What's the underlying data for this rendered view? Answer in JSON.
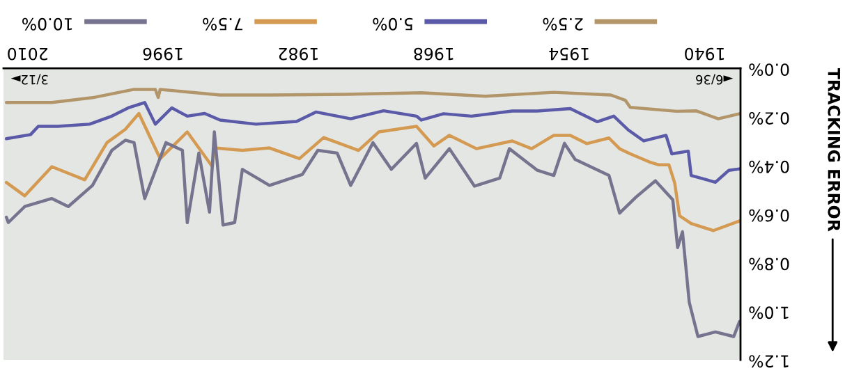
{
  "chart_data": {
    "type": "line",
    "ylabel": "TRACKING ERROR",
    "xlim": [
      2012.5,
      1936.3
    ],
    "xticks": [
      1940,
      1954,
      1968,
      1982,
      1996,
      2010
    ],
    "ylim": [
      1.2,
      0
    ],
    "yticks": [
      {
        "value": 0,
        "label": "0.0%"
      },
      {
        "value": 0.2,
        "label": "0.2%"
      },
      {
        "value": 0.4,
        "label": "0.4%"
      },
      {
        "value": 0.6,
        "label": "0.6%"
      },
      {
        "value": 0.8,
        "label": "0.8%"
      },
      {
        "value": 1.0,
        "label": "1.0%"
      },
      {
        "value": 1.2,
        "label": "1.2%"
      }
    ],
    "grid": false,
    "legend": "top",
    "marker": "none",
    "line_style": "solid",
    "annotations": [
      "◄6/36",
      "3/12►"
    ],
    "series": [
      {
        "name": "2.5%",
        "color": "#b3956a",
        "x": [
          1936.4,
          1938.6,
          1940.9,
          1942.9,
          1947.7,
          1948.2,
          1949.7,
          1955.6,
          1962.7,
          1969.3,
          1977.0,
          1985.0,
          1990.1,
          1996.3,
          1996.5,
          1996.8,
          1999.0,
          2003.3,
          2007.5,
          2012.2
        ],
        "values": [
          0.187,
          0.208,
          0.175,
          0.177,
          0.161,
          0.132,
          0.11,
          0.099,
          0.115,
          0.101,
          0.107,
          0.11,
          0.11,
          0.087,
          0.12,
          0.087,
          0.087,
          0.121,
          0.141,
          0.141
        ]
      },
      {
        "name": "5.0%",
        "color": "#5a5aa8",
        "x": [
          1936.4,
          1937.5,
          1938.9,
          1941.4,
          1941.7,
          1943.4,
          1944.0,
          1946.3,
          1947.9,
          1949.4,
          1951.1,
          1953.9,
          1957.3,
          1959.9,
          1964.1,
          1967.0,
          1969.3,
          1969.8,
          1973.2,
          1976.6,
          1980.2,
          1982.2,
          1986.4,
          1990.1,
          1991.7,
          1993.5,
          1995.1,
          1996.8,
          1997.9,
          1999.6,
          2001.3,
          2003.6,
          2006.9,
          2008.9,
          2009.7,
          2012.2
        ],
        "values": [
          0.414,
          0.42,
          0.469,
          0.441,
          0.341,
          0.352,
          0.276,
          0.299,
          0.254,
          0.197,
          0.22,
          0.166,
          0.176,
          0.176,
          0.197,
          0.187,
          0.213,
          0.197,
          0.175,
          0.208,
          0.18,
          0.219,
          0.23,
          0.213,
          0.186,
          0.197,
          0.163,
          0.23,
          0.141,
          0.163,
          0.197,
          0.23,
          0.239,
          0.239,
          0.273,
          0.29
        ]
      },
      {
        "name": "7.5%",
        "color": "#d49a52",
        "x": [
          1936.4,
          1939.1,
          1941.4,
          1942.6,
          1943.1,
          1943.7,
          1944.8,
          1945.7,
          1947.7,
          1948.8,
          1949.9,
          1952.2,
          1953.9,
          1955.6,
          1957.9,
          1959.9,
          1963.6,
          1966.4,
          1968.0,
          1969.8,
          1973.7,
          1975.8,
          1979.4,
          1981.9,
          1985.0,
          1987.8,
          1990.7,
          1990.9,
          1993.5,
          1996.3,
          1998.5,
          1999.9,
          2001.8,
          2004.1,
          2007.5,
          2010.3,
          2012.2
        ],
        "values": [
          0.628,
          0.668,
          0.639,
          0.607,
          0.473,
          0.397,
          0.397,
          0.386,
          0.352,
          0.331,
          0.287,
          0.31,
          0.276,
          0.276,
          0.331,
          0.299,
          0.331,
          0.276,
          0.32,
          0.239,
          0.262,
          0.338,
          0.285,
          0.372,
          0.328,
          0.338,
          0.328,
          0.405,
          0.262,
          0.372,
          0.186,
          0.251,
          0.306,
          0.459,
          0.405,
          0.525,
          0.47
        ]
      },
      {
        "name": "10.0%",
        "color": "#76738f",
        "x": [
          1936.4,
          1937.0,
          1938.9,
          1940.7,
          1941.6,
          1942.3,
          1942.8,
          1943.3,
          1945.1,
          1947.1,
          1948.8,
          1949.9,
          1953.4,
          1954.5,
          1955.6,
          1957.3,
          1960.2,
          1961.2,
          1963.8,
          1966.4,
          1968.9,
          1969.8,
          1972.4,
          1974.3,
          1976.6,
          1978.0,
          1980.0,
          1981.6,
          1985.0,
          1987.8,
          1988.6,
          1989.8,
          1990.7,
          1991.2,
          1992.3,
          1993.5,
          1994.0,
          1995.7,
          1997.9,
          1999.0,
          1999.9,
          2001.3,
          2003.3,
          2005.8,
          2007.5,
          2010.3,
          2012.0,
          2012.2
        ],
        "values": [
          1.042,
          1.104,
          1.085,
          1.104,
          0.963,
          0.673,
          0.738,
          0.541,
          0.463,
          0.53,
          0.596,
          0.441,
          0.375,
          0.309,
          0.441,
          0.42,
          0.331,
          0.452,
          0.485,
          0.331,
          0.452,
          0.309,
          0.416,
          0.306,
          0.482,
          0.349,
          0.338,
          0.437,
          0.482,
          0.416,
          0.635,
          0.645,
          0.262,
          0.592,
          0.349,
          0.635,
          0.338,
          0.306,
          0.536,
          0.306,
          0.296,
          0.338,
          0.482,
          0.569,
          0.536,
          0.569,
          0.635,
          0.613
        ]
      }
    ]
  }
}
